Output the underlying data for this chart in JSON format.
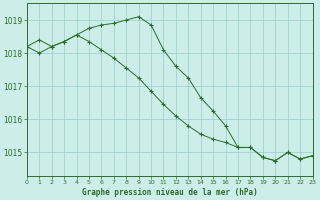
{
  "title": "Graphe pression niveau de la mer (hPa)",
  "background_color": "#cceee8",
  "grid_color": "#99cccc",
  "line_color": "#2d6b2d",
  "xlim": [
    0,
    23
  ],
  "ylim": [
    1014.3,
    1019.5
  ],
  "yticks": [
    1015,
    1016,
    1017,
    1018,
    1019
  ],
  "xticks": [
    0,
    1,
    2,
    3,
    4,
    5,
    6,
    7,
    8,
    9,
    10,
    11,
    12,
    13,
    14,
    15,
    16,
    17,
    18,
    19,
    20,
    21,
    22,
    23
  ],
  "series1": [
    1018.2,
    1018.0,
    1018.2,
    1018.35,
    1018.55,
    1018.75,
    1018.85,
    1018.9,
    1019.0,
    1019.1,
    1018.85,
    1018.1,
    1017.6,
    1017.25,
    1016.65,
    1016.25,
    1015.8,
    1015.15,
    1015.15,
    1014.85,
    1014.75,
    1015.0,
    1014.8,
    1014.9
  ],
  "series2": [
    1018.2,
    1018.4,
    1018.2,
    1018.35,
    1018.55,
    1018.35,
    1018.1,
    1017.85,
    1017.55,
    1017.25,
    1016.85,
    1016.45,
    1016.1,
    1015.8,
    1015.55,
    1015.4,
    1015.3,
    1015.15,
    1015.15,
    1014.85,
    1014.75,
    1015.0,
    1014.8,
    1014.9
  ]
}
